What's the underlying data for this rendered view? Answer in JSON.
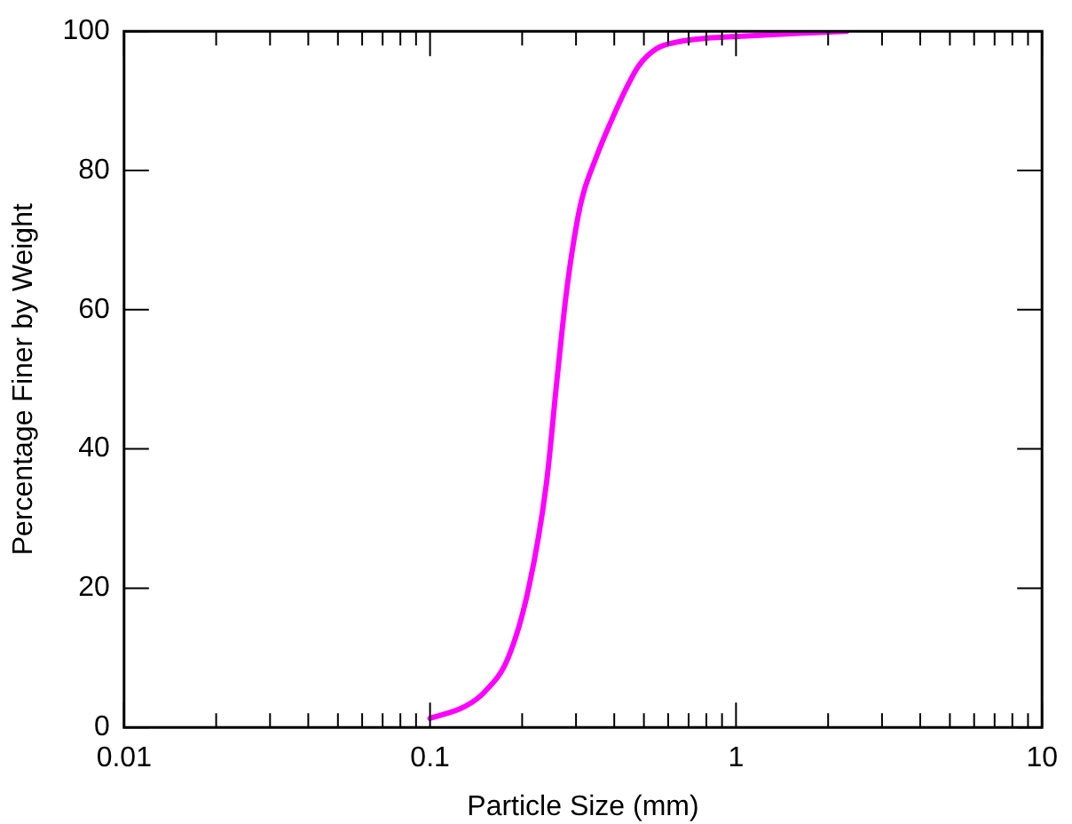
{
  "chart_data": {
    "type": "line",
    "xlabel": "Particle Size (mm)",
    "ylabel": "Percentage Finer by Weight",
    "log": "x",
    "grid": false,
    "legend": false,
    "marker": "none",
    "line_style": "solid",
    "xlim": [
      0.01,
      10
    ],
    "ylim": [
      0,
      100
    ],
    "xticks": [
      0.01,
      {
        "value": 0.02,
        "label": null
      },
      {
        "value": 0.03,
        "label": null
      },
      {
        "value": 0.04,
        "label": null
      },
      {
        "value": 0.05,
        "label": null
      },
      {
        "value": 0.06,
        "label": null
      },
      {
        "value": 0.07,
        "label": null
      },
      {
        "value": 0.08,
        "label": null
      },
      {
        "value": 0.09,
        "label": null
      },
      0.1,
      {
        "value": 0.2,
        "label": null
      },
      {
        "value": 0.3,
        "label": null
      },
      {
        "value": 0.4,
        "label": null
      },
      {
        "value": 0.5,
        "label": null
      },
      {
        "value": 0.6,
        "label": null
      },
      {
        "value": 0.7,
        "label": null
      },
      {
        "value": 0.8,
        "label": null
      },
      {
        "value": 0.9,
        "label": null
      },
      1,
      {
        "value": 2,
        "label": null
      },
      {
        "value": 3,
        "label": null
      },
      {
        "value": 4,
        "label": null
      },
      {
        "value": 5,
        "label": null
      },
      {
        "value": 6,
        "label": null
      },
      {
        "value": 7,
        "label": null
      },
      {
        "value": 8,
        "label": null
      },
      {
        "value": 9,
        "label": null
      },
      10
    ],
    "yticks": [
      0,
      20,
      40,
      60,
      80,
      100
    ],
    "series": [
      {
        "color": "#ff00ff",
        "x": [
          0.1,
          0.13,
          0.15,
          0.18,
          0.21,
          0.24,
          0.26,
          0.28,
          0.31,
          0.35,
          0.39,
          0.44,
          0.48,
          0.55,
          0.65,
          0.8,
          1.05,
          1.6,
          2.3
        ],
        "values": [
          1.3,
          3,
          5,
          10,
          20,
          35,
          50,
          63,
          75,
          82,
          87,
          92,
          95,
          97.5,
          98.5,
          99,
          99.3,
          99.7,
          100
        ]
      }
    ]
  }
}
